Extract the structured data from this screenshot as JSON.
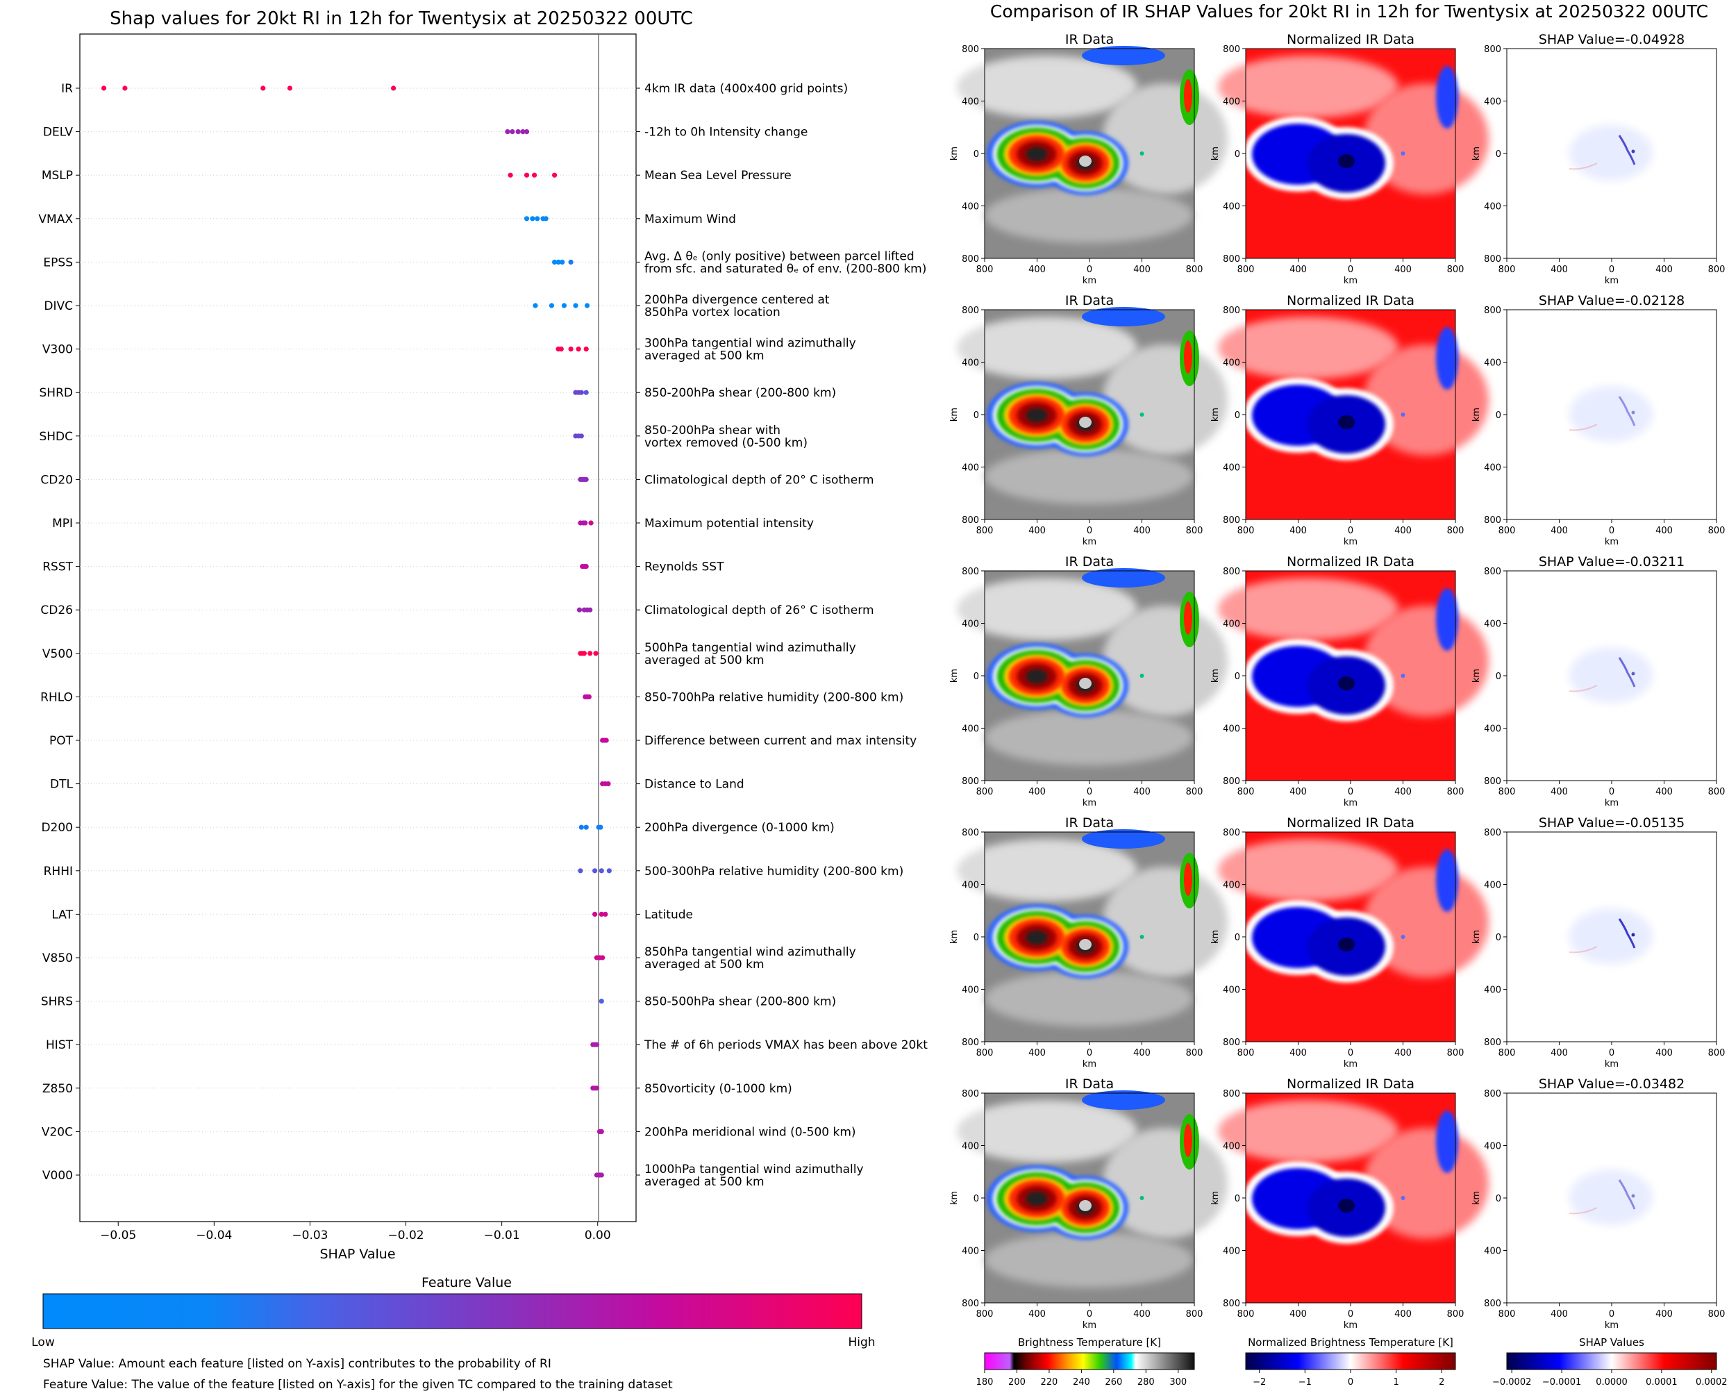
{
  "chart_data": [
    {
      "type": "scatter",
      "title": "Shap values for 20kt RI in 12h for Twentysix at 20250322 00UTC",
      "xlabel": "SHAP Value",
      "xlim": [
        -0.054,
        0.004
      ],
      "x_ticks": [
        -0.05,
        -0.04,
        -0.03,
        -0.02,
        -0.01,
        0.0
      ],
      "x_tick_labels": [
        "−0.05",
        "−0.04",
        "−0.03",
        "−0.02",
        "−0.01",
        "0.00"
      ],
      "features": [
        {
          "name": "IR",
          "desc": [
            "4km IR data (400x400 grid points)"
          ],
          "points": [
            [
              -0.0515,
              1
            ],
            [
              -0.0493,
              1
            ],
            [
              -0.0349,
              1
            ],
            [
              -0.0321,
              1
            ],
            [
              -0.0213,
              1
            ]
          ]
        },
        {
          "name": "DELV",
          "desc": [
            "-12h to 0h Intensity change"
          ],
          "points": [
            [
              -0.0094,
              0.6
            ],
            [
              -0.0089,
              0.6
            ],
            [
              -0.0083,
              0.6
            ],
            [
              -0.0078,
              0.6
            ],
            [
              -0.0074,
              0.6
            ]
          ]
        },
        {
          "name": "MSLP",
          "desc": [
            "Mean Sea Level Pressure"
          ],
          "points": [
            [
              -0.0091,
              1
            ],
            [
              -0.0074,
              1
            ],
            [
              -0.0066,
              1
            ],
            [
              -0.0045,
              1
            ]
          ]
        },
        {
          "name": "VMAX",
          "desc": [
            "Maximum Wind"
          ],
          "points": [
            [
              -0.0074,
              0
            ],
            [
              -0.0068,
              0
            ],
            [
              -0.0063,
              0
            ],
            [
              -0.0057,
              0
            ],
            [
              -0.0054,
              0
            ]
          ]
        },
        {
          "name": "EPSS",
          "desc": [
            "Avg. Δ θₑ (only positive) between parcel lifted",
            "from sfc. and saturated θₑ of env. (200-800 km)"
          ],
          "points": [
            [
              -0.0045,
              0
            ],
            [
              -0.0041,
              0
            ],
            [
              -0.0037,
              0
            ],
            [
              -0.0028,
              0.1
            ]
          ]
        },
        {
          "name": "DIVC",
          "desc": [
            "200hPa divergence centered at",
            "850hPa vortex location"
          ],
          "points": [
            [
              -0.0065,
              0
            ],
            [
              -0.0048,
              0
            ],
            [
              -0.0035,
              0
            ],
            [
              -0.0023,
              0
            ],
            [
              -0.0011,
              0
            ]
          ]
        },
        {
          "name": "V300",
          "desc": [
            "300hPa tangential wind azimuthally",
            "averaged at 500 km"
          ],
          "points": [
            [
              -0.0041,
              1
            ],
            [
              -0.0038,
              1
            ],
            [
              -0.0028,
              1
            ],
            [
              -0.002,
              1
            ],
            [
              -0.0012,
              1
            ]
          ]
        },
        {
          "name": "SHRD",
          "desc": [
            "850-200hPa shear (200-800 km)"
          ],
          "points": [
            [
              -0.0023,
              0.4
            ],
            [
              -0.002,
              0.4
            ],
            [
              -0.0017,
              0.4
            ],
            [
              -0.0012,
              0.3
            ]
          ]
        },
        {
          "name": "SHDC",
          "desc": [
            "850-200hPa shear with",
            "vortex removed (0-500 km)"
          ],
          "points": [
            [
              -0.0023,
              0.4
            ],
            [
              -0.002,
              0.4
            ],
            [
              -0.0017,
              0.4
            ]
          ]
        },
        {
          "name": "CD20",
          "desc": [
            "Climatological depth of 20° C isotherm"
          ],
          "points": [
            [
              -0.0018,
              0.55
            ],
            [
              -0.0016,
              0.55
            ],
            [
              -0.0014,
              0.55
            ],
            [
              -0.0012,
              0.55
            ]
          ]
        },
        {
          "name": "MPI",
          "desc": [
            "Maximum potential intensity"
          ],
          "points": [
            [
              -0.0018,
              0.7
            ],
            [
              -0.0015,
              0.7
            ],
            [
              -0.0013,
              0.7
            ],
            [
              -0.0007,
              0.8
            ]
          ]
        },
        {
          "name": "RSST",
          "desc": [
            "Reynolds SST"
          ],
          "points": [
            [
              -0.0016,
              0.75
            ],
            [
              -0.0014,
              0.75
            ],
            [
              -0.0012,
              0.75
            ]
          ]
        },
        {
          "name": "CD26",
          "desc": [
            "Climatological depth of 26° C isotherm"
          ],
          "points": [
            [
              -0.0019,
              0.6
            ],
            [
              -0.0014,
              0.6
            ],
            [
              -0.0011,
              0.6
            ],
            [
              -0.0008,
              0.6
            ]
          ]
        },
        {
          "name": "V500",
          "desc": [
            "500hPa tangential wind azimuthally",
            "averaged at 500 km"
          ],
          "points": [
            [
              -0.0018,
              1
            ],
            [
              -0.0016,
              1
            ],
            [
              -0.0014,
              1
            ],
            [
              -0.0008,
              1
            ],
            [
              -0.0002,
              1
            ]
          ]
        },
        {
          "name": "RHLO",
          "desc": [
            "850-700hPa relative humidity (200-800 km)"
          ],
          "points": [
            [
              -0.0013,
              0.75
            ],
            [
              -0.0011,
              0.75
            ],
            [
              -0.0009,
              0.75
            ]
          ]
        },
        {
          "name": "POT",
          "desc": [
            "Difference between current and max intensity"
          ],
          "points": [
            [
              0.0005,
              0.75
            ],
            [
              0.0007,
              0.75
            ],
            [
              0.0009,
              0.75
            ]
          ]
        },
        {
          "name": "DTL",
          "desc": [
            "Distance to Land"
          ],
          "points": [
            [
              0.0005,
              0.75
            ],
            [
              0.0008,
              0.75
            ],
            [
              0.0011,
              0.75
            ]
          ]
        },
        {
          "name": "D200",
          "desc": [
            "200hPa divergence (0-1000 km)"
          ],
          "points": [
            [
              -0.0017,
              0.05
            ],
            [
              -0.0012,
              0.05
            ],
            [
              0.0001,
              0.05
            ],
            [
              0.0003,
              0.05
            ]
          ]
        },
        {
          "name": "RHHI",
          "desc": [
            "500-300hPa relative humidity (200-800 km)"
          ],
          "points": [
            [
              -0.0018,
              0.3
            ],
            [
              -0.0003,
              0.3
            ],
            [
              0.0004,
              0.3
            ],
            [
              0.0012,
              0.3
            ]
          ]
        },
        {
          "name": "LAT",
          "desc": [
            "Latitude"
          ],
          "points": [
            [
              -0.0003,
              0.8
            ],
            [
              0.0004,
              0.8
            ],
            [
              0.0008,
              0.8
            ]
          ]
        },
        {
          "name": "V850",
          "desc": [
            "850hPa tangential wind azimuthally",
            "averaged at 500 km"
          ],
          "points": [
            [
              -0.0001,
              0.8
            ],
            [
              0.0002,
              0.8
            ],
            [
              0.0005,
              0.8
            ]
          ]
        },
        {
          "name": "SHRS",
          "desc": [
            "850-500hPa shear (200-800 km)"
          ],
          "points": [
            [
              0.0004,
              0.25
            ]
          ]
        },
        {
          "name": "HIST",
          "desc": [
            "The # of 6h periods VMAX has been above 20kt"
          ],
          "points": [
            [
              -0.0005,
              0.65
            ],
            [
              -0.0003,
              0.65
            ],
            [
              -0.0001,
              0.65
            ]
          ]
        },
        {
          "name": "Z850",
          "desc": [
            "850vorticity (0-1000 km)"
          ],
          "points": [
            [
              -0.0005,
              0.7
            ],
            [
              -0.0003,
              0.7
            ],
            [
              -0.0001,
              0.7
            ]
          ]
        },
        {
          "name": "V20C",
          "desc": [
            "200hPa meridional wind (0-500 km)"
          ],
          "points": [
            [
              0.0002,
              0.7
            ],
            [
              0.0004,
              0.7
            ]
          ]
        },
        {
          "name": "V000",
          "desc": [
            "1000hPa tangential wind azimuthally",
            "averaged at 500 km"
          ],
          "points": [
            [
              -0.0001,
              0.65
            ],
            [
              0.0002,
              0.65
            ],
            [
              0.0004,
              0.65
            ]
          ]
        }
      ],
      "colorbar": {
        "label": "Feature Value",
        "low": "Low",
        "high": "High",
        "colors": [
          "#008afb",
          "#4d5fe4",
          "#8236c0",
          "#c30ba0",
          "#ff0052"
        ]
      },
      "footnotes": [
        "SHAP Value: Amount each feature [listed on Y-axis] contributes to the probability of RI",
        "Feature Value: The value of the feature [listed on Y-axis] for the given TC compared to the training dataset"
      ]
    },
    {
      "type": "heatmap",
      "title": "Comparison of IR SHAP Values for 20kt RI in 12h for Twentysix at 20250322 00UTC",
      "column_titles": [
        "IR Data",
        "Normalized IR Data"
      ],
      "shap_titles": [
        "SHAP Value=-0.04928",
        "SHAP Value=-0.02128",
        "SHAP Value=-0.03211",
        "SHAP Value=-0.05135",
        "SHAP Value=-0.03482"
      ],
      "axis_label": "km",
      "x_tick_labels": [
        "800",
        "400",
        "0",
        "400",
        "800"
      ],
      "y_tick_labels": [
        "800",
        "400",
        "0",
        "400",
        "800"
      ],
      "colorbars": [
        {
          "label": "Brightness Temperature [K]",
          "ticks": [
            "180",
            "200",
            "220",
            "240",
            "260",
            "280",
            "300"
          ],
          "range": [
            180,
            310
          ]
        },
        {
          "label": "Normalized Brightness Temperature [K]",
          "ticks": [
            "−2",
            "−1",
            "0",
            "1",
            "2"
          ],
          "range": [
            -2.3,
            2.3
          ]
        },
        {
          "label": "SHAP Values",
          "ticks": [
            "−0.0002",
            "−0.0001",
            "0.0000",
            "0.0001",
            "0.0002"
          ],
          "range": [
            -0.00021,
            0.00021
          ]
        }
      ]
    }
  ]
}
